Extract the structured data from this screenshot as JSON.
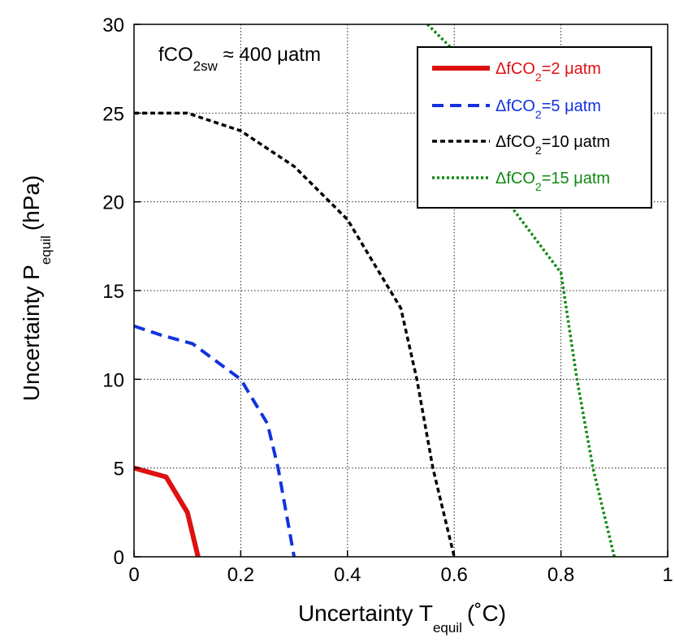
{
  "chart_data": {
    "type": "line",
    "xlabel": {
      "main": "Uncertainty T",
      "sub": "equil",
      "unit": "(˚C)"
    },
    "ylabel": {
      "main": "Uncertainty P",
      "sub": "equil",
      "unit": "(hPa)"
    },
    "xlim": [
      0,
      1
    ],
    "ylim": [
      0,
      30
    ],
    "x_ticks": [
      0,
      0.2,
      0.4,
      0.6,
      0.8,
      1
    ],
    "x_tick_labels": [
      "0",
      "0.2",
      "0.4",
      "0.6",
      "0.8",
      "1"
    ],
    "y_ticks": [
      0,
      5,
      10,
      15,
      20,
      25,
      30
    ],
    "y_tick_labels": [
      "0",
      "5",
      "10",
      "15",
      "20",
      "25",
      "30"
    ],
    "grid": true,
    "legend_position": "top-right",
    "annotation": {
      "pre": "fCO",
      "sub": "2sw",
      "post": " ≈ 400 μatm"
    },
    "series": [
      {
        "name": "ΔfCO2=2 μatm",
        "label_pre": "ΔfCO",
        "label_sub": "2",
        "label_post": "=2 μatm",
        "color": "#dd1111",
        "style": "solid",
        "x": [
          0,
          0.06,
          0.1,
          0.12
        ],
        "y": [
          5,
          4.5,
          2.5,
          0
        ]
      },
      {
        "name": "ΔfCO2=5 μatm",
        "label_pre": "ΔfCO",
        "label_sub": "2",
        "label_post": "=5 μatm",
        "color": "#1133dd",
        "style": "dashed",
        "x": [
          0,
          0.05,
          0.11,
          0.2,
          0.25,
          0.27,
          0.3
        ],
        "y": [
          13,
          12.5,
          12,
          10,
          7.5,
          5,
          0
        ]
      },
      {
        "name": "ΔfCO2=10 μatm",
        "label_pre": "ΔfCO",
        "label_sub": "2",
        "label_post": "=10 μatm",
        "color": "#000000",
        "style": "dashed",
        "x": [
          0,
          0.1,
          0.2,
          0.3,
          0.4,
          0.48,
          0.5,
          0.53,
          0.56,
          0.6
        ],
        "y": [
          25,
          25,
          24,
          22,
          19,
          15,
          14,
          10,
          5,
          0
        ]
      },
      {
        "name": "ΔfCO2=15 μatm",
        "label_pre": "ΔfCO",
        "label_sub": "2",
        "label_post": "=15 μatm",
        "color": "#118811",
        "style": "dotted",
        "x": [
          0.55,
          0.6,
          0.65,
          0.7,
          0.75,
          0.8,
          0.83,
          0.86,
          0.9
        ],
        "y": [
          30,
          28.5,
          26,
          20,
          18,
          16,
          10,
          5,
          0
        ]
      }
    ]
  }
}
